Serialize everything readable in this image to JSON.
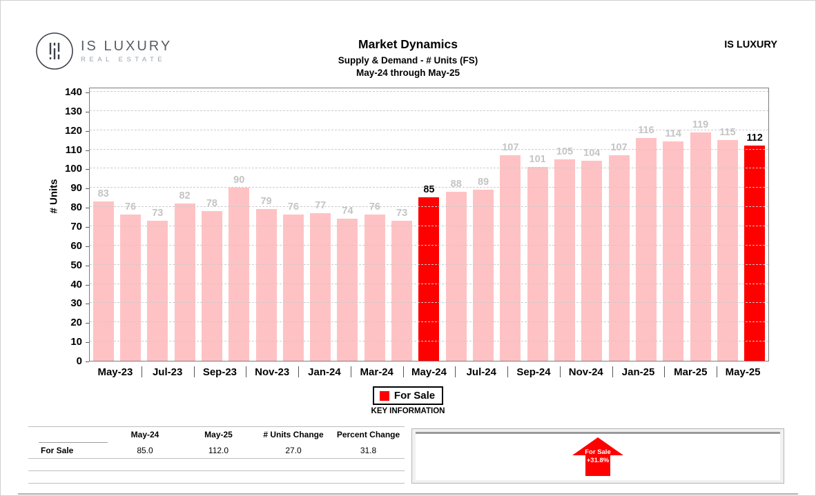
{
  "header": {
    "logo_brand": "IS LUXURY",
    "logo_sub": "REAL ESTATE",
    "title": "Market Dynamics",
    "subtitle": "Supply & Demand - # Units (FS)",
    "date_range": "May-24 through May-25",
    "watermark": "IS LUXURY"
  },
  "chart_data": {
    "type": "bar",
    "title": "Market Dynamics",
    "subtitle": "Supply & Demand - # Units (FS)",
    "date_range": "May-24 through May-25",
    "ylabel": "# Units",
    "ylim": [
      0,
      140
    ],
    "ytick_step": 10,
    "grid": true,
    "categories": [
      "May-23",
      "Jun-23",
      "Jul-23",
      "Aug-23",
      "Sep-23",
      "Oct-23",
      "Nov-23",
      "Dec-23",
      "Jan-24",
      "Feb-24",
      "Mar-24",
      "Apr-24",
      "May-24",
      "Jun-24",
      "Jul-24",
      "Aug-24",
      "Sep-24",
      "Oct-24",
      "Nov-24",
      "Dec-24",
      "Jan-25",
      "Feb-25",
      "Mar-25",
      "Apr-25",
      "May-25"
    ],
    "values": [
      83,
      76,
      73,
      82,
      78,
      90,
      79,
      76,
      77,
      74,
      76,
      73,
      85,
      88,
      89,
      107,
      101,
      105,
      104,
      107,
      116,
      114,
      119,
      115,
      112
    ],
    "xtick_labels": [
      "May-23",
      "Jul-23",
      "Sep-23",
      "Nov-23",
      "Jan-24",
      "Mar-24",
      "May-24",
      "Jul-24",
      "Sep-24",
      "Nov-24",
      "Jan-25",
      "Mar-25",
      "May-25"
    ],
    "highlight_indices": [
      12,
      24
    ],
    "series_name": "For Sale",
    "legend_position": "bottom",
    "colors": {
      "bar": "#ffc2c4",
      "highlight": "#ff0000",
      "bar_label": "#c4c4c4",
      "highlight_label": "#000000"
    }
  },
  "legend": {
    "label": "For Sale"
  },
  "key_information": {
    "heading": "KEY INFORMATION",
    "table": {
      "columns": [
        "",
        "May-24",
        "May-25",
        "# Units Change",
        "Percent Change"
      ],
      "rows": [
        {
          "label": "For Sale",
          "values": [
            "85.0",
            "112.0",
            "27.0",
            "31.8"
          ]
        }
      ]
    },
    "callout": {
      "label": "For Sale",
      "change": "+31.8%",
      "direction": "up"
    }
  }
}
